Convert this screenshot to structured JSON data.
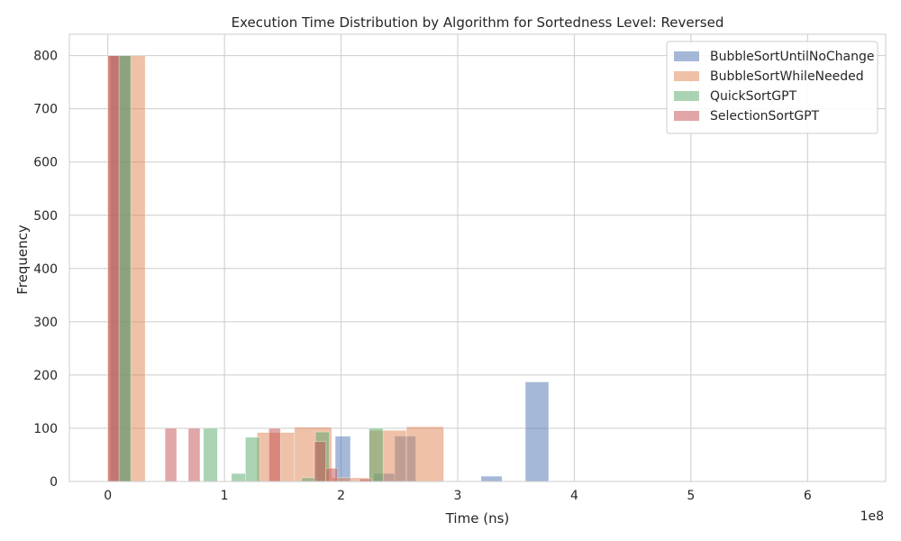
{
  "chart_data": {
    "type": "histogram",
    "title": "Execution Time Distribution by Algorithm for Sortedness Level: Reversed",
    "xlabel": "Time (ns)",
    "ylabel": "Frequency",
    "x_offset_text": "1e8",
    "x_scale": 100000000,
    "xlim": [
      -0.33,
      6.67
    ],
    "ylim": [
      0,
      840
    ],
    "x_ticks": [
      0,
      1,
      2,
      3,
      4,
      5,
      6
    ],
    "y_ticks": [
      0,
      100,
      200,
      300,
      400,
      500,
      600,
      700,
      800
    ],
    "grid": true,
    "legend_position": "top-right",
    "series": [
      {
        "name": "BubbleSortUntilNoChange",
        "color": "#4c72b0",
        "bins": [
          {
            "x0": 0.02,
            "x1": 0.19,
            "value": 800
          },
          {
            "x0": 1.95,
            "x1": 2.08,
            "value": 85
          },
          {
            "x0": 2.28,
            "x1": 2.46,
            "value": 15
          },
          {
            "x0": 2.46,
            "x1": 2.64,
            "value": 85
          },
          {
            "x0": 3.2,
            "x1": 3.38,
            "value": 10
          },
          {
            "x0": 3.58,
            "x1": 3.78,
            "value": 187
          }
        ]
      },
      {
        "name": "BubbleSortWhileNeeded",
        "color": "#dd8452",
        "bins": [
          {
            "x0": 0.0,
            "x1": 0.32,
            "value": 800
          },
          {
            "x0": 1.28,
            "x1": 1.6,
            "value": 92
          },
          {
            "x0": 1.6,
            "x1": 1.92,
            "value": 102
          },
          {
            "x0": 1.92,
            "x1": 2.24,
            "value": 7
          },
          {
            "x0": 2.24,
            "x1": 2.56,
            "value": 96
          },
          {
            "x0": 2.56,
            "x1": 2.88,
            "value": 103
          }
        ]
      },
      {
        "name": "QuickSortGPT",
        "color": "#55a868",
        "bins": [
          {
            "x0": 0.09,
            "x1": 0.2,
            "value": 800
          },
          {
            "x0": 0.82,
            "x1": 0.94,
            "value": 100
          },
          {
            "x0": 1.06,
            "x1": 1.18,
            "value": 15
          },
          {
            "x0": 1.18,
            "x1": 1.3,
            "value": 83
          },
          {
            "x0": 1.66,
            "x1": 1.78,
            "value": 7
          },
          {
            "x0": 1.78,
            "x1": 1.9,
            "value": 93
          },
          {
            "x0": 2.24,
            "x1": 2.36,
            "value": 100
          }
        ]
      },
      {
        "name": "SelectionSortGPT",
        "color": "#c44e52",
        "bins": [
          {
            "x0": 0.0,
            "x1": 0.1,
            "value": 800
          },
          {
            "x0": 0.49,
            "x1": 0.59,
            "value": 100
          },
          {
            "x0": 0.69,
            "x1": 0.79,
            "value": 100
          },
          {
            "x0": 1.38,
            "x1": 1.48,
            "value": 100
          },
          {
            "x0": 1.77,
            "x1": 1.87,
            "value": 75
          },
          {
            "x0": 1.87,
            "x1": 1.97,
            "value": 25
          },
          {
            "x0": 2.16,
            "x1": 2.26,
            "value": 5
          }
        ]
      }
    ]
  }
}
